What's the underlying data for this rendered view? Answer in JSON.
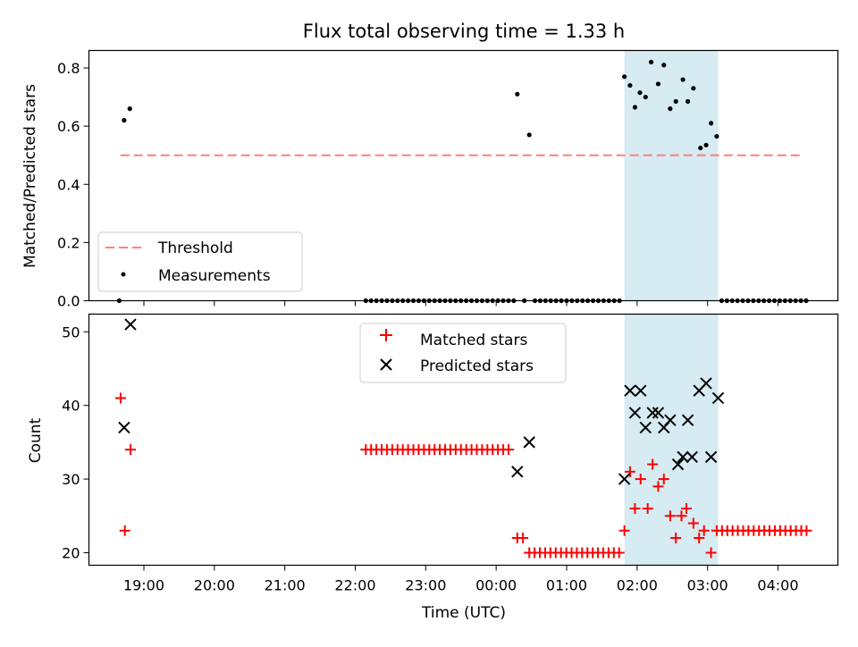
{
  "chart_data": [
    {
      "type": "scatter",
      "title": "Flux total observing time = 1.33 h",
      "ylabel": "Matched/Predicted stars",
      "xlabel": "",
      "ylim": [
        0.0,
        0.86
      ],
      "yticks": [
        "0.0",
        "0.2",
        "0.4",
        "0.6",
        "0.8"
      ],
      "xticks": [
        "19:00",
        "20:00",
        "21:00",
        "22:00",
        "23:00",
        "00:00",
        "01:00",
        "02:00",
        "03:00",
        "04:00"
      ],
      "highlight": {
        "start": 1.82,
        "end": 3.15,
        "color": "#add8e6"
      },
      "threshold": {
        "name": "Threshold",
        "value": 0.5,
        "color": "#ff7f7f",
        "x_start": "18:40",
        "x_end": "04:20"
      },
      "legend": {
        "placement": "lower left",
        "entries": [
          "Threshold",
          "Measurements"
        ]
      },
      "series": [
        {
          "name": "Measurements",
          "marker": "dot",
          "color": "#000000",
          "points": [
            [
              -5.35,
              0.0
            ],
            [
              -5.28,
              0.62
            ],
            [
              -5.2,
              0.66
            ],
            [
              -1.85,
              0.0
            ],
            [
              -1.775,
              0.0
            ],
            [
              -1.7,
              0.0
            ],
            [
              -1.625,
              0.0
            ],
            [
              -1.55,
              0.0
            ],
            [
              -1.475,
              0.0
            ],
            [
              -1.4,
              0.0
            ],
            [
              -1.325,
              0.0
            ],
            [
              -1.25,
              0.0
            ],
            [
              -1.175,
              0.0
            ],
            [
              -1.1,
              0.0
            ],
            [
              -1.025,
              0.0
            ],
            [
              -0.95,
              0.0
            ],
            [
              -0.875,
              0.0
            ],
            [
              -0.8,
              0.0
            ],
            [
              -0.725,
              0.0
            ],
            [
              -0.65,
              0.0
            ],
            [
              -0.575,
              0.0
            ],
            [
              -0.5,
              0.0
            ],
            [
              -0.425,
              0.0
            ],
            [
              -0.35,
              0.0
            ],
            [
              -0.275,
              0.0
            ],
            [
              -0.2,
              0.0
            ],
            [
              -0.125,
              0.0
            ],
            [
              -0.05,
              0.0
            ],
            [
              0.025,
              0.0
            ],
            [
              0.1,
              0.0
            ],
            [
              0.175,
              0.0
            ],
            [
              0.25,
              0.0
            ],
            [
              0.3,
              0.71
            ],
            [
              0.4,
              0.0
            ],
            [
              0.47,
              0.57
            ],
            [
              0.55,
              0.0
            ],
            [
              0.625,
              0.0
            ],
            [
              0.7,
              0.0
            ],
            [
              0.775,
              0.0
            ],
            [
              0.85,
              0.0
            ],
            [
              0.925,
              0.0
            ],
            [
              1.0,
              0.0
            ],
            [
              1.075,
              0.0
            ],
            [
              1.15,
              0.0
            ],
            [
              1.225,
              0.0
            ],
            [
              1.3,
              0.0
            ],
            [
              1.375,
              0.0
            ],
            [
              1.45,
              0.0
            ],
            [
              1.525,
              0.0
            ],
            [
              1.6,
              0.0
            ],
            [
              1.675,
              0.0
            ],
            [
              1.75,
              0.0
            ],
            [
              1.82,
              0.77
            ],
            [
              1.9,
              0.74
            ],
            [
              1.97,
              0.665
            ],
            [
              2.04,
              0.715
            ],
            [
              2.12,
              0.7
            ],
            [
              2.2,
              0.82
            ],
            [
              2.3,
              0.745
            ],
            [
              2.38,
              0.81
            ],
            [
              2.47,
              0.66
            ],
            [
              2.55,
              0.685
            ],
            [
              2.65,
              0.76
            ],
            [
              2.72,
              0.685
            ],
            [
              2.8,
              0.73
            ],
            [
              2.9,
              0.525
            ],
            [
              2.98,
              0.535
            ],
            [
              3.05,
              0.61
            ],
            [
              3.13,
              0.565
            ],
            [
              3.2,
              0.0
            ],
            [
              3.275,
              0.0
            ],
            [
              3.35,
              0.0
            ],
            [
              3.425,
              0.0
            ],
            [
              3.5,
              0.0
            ],
            [
              3.575,
              0.0
            ],
            [
              3.65,
              0.0
            ],
            [
              3.725,
              0.0
            ],
            [
              3.8,
              0.0
            ],
            [
              3.875,
              0.0
            ],
            [
              3.95,
              0.0
            ],
            [
              4.025,
              0.0
            ],
            [
              4.1,
              0.0
            ],
            [
              4.175,
              0.0
            ],
            [
              4.25,
              0.0
            ],
            [
              4.325,
              0.0
            ],
            [
              4.4,
              0.0
            ]
          ]
        }
      ]
    },
    {
      "type": "scatter",
      "title": "",
      "ylabel": "Count",
      "xlabel": "Time (UTC)",
      "ylim": [
        18.3,
        52.4
      ],
      "yticks": [
        "20",
        "30",
        "40",
        "50"
      ],
      "xticks": [
        "19:00",
        "20:00",
        "21:00",
        "22:00",
        "23:00",
        "00:00",
        "01:00",
        "02:00",
        "03:00",
        "04:00"
      ],
      "highlight": {
        "start": 1.82,
        "end": 3.15,
        "color": "#add8e6"
      },
      "legend": {
        "placement": "upper center",
        "entries": [
          "Matched stars",
          "Predicted stars"
        ]
      },
      "series": [
        {
          "name": "Matched stars",
          "marker": "plus",
          "color": "#ff0000",
          "points": [
            [
              -5.33,
              41
            ],
            [
              -5.27,
              23
            ],
            [
              -5.19,
              34
            ],
            [
              -1.85,
              34
            ],
            [
              -1.775,
              34
            ],
            [
              -1.7,
              34
            ],
            [
              -1.625,
              34
            ],
            [
              -1.55,
              34
            ],
            [
              -1.475,
              34
            ],
            [
              -1.4,
              34
            ],
            [
              -1.325,
              34
            ],
            [
              -1.25,
              34
            ],
            [
              -1.175,
              34
            ],
            [
              -1.1,
              34
            ],
            [
              -1.025,
              34
            ],
            [
              -0.95,
              34
            ],
            [
              -0.875,
              34
            ],
            [
              -0.8,
              34
            ],
            [
              -0.725,
              34
            ],
            [
              -0.65,
              34
            ],
            [
              -0.575,
              34
            ],
            [
              -0.5,
              34
            ],
            [
              -0.425,
              34
            ],
            [
              -0.35,
              34
            ],
            [
              -0.275,
              34
            ],
            [
              -0.2,
              34
            ],
            [
              -0.125,
              34
            ],
            [
              -0.05,
              34
            ],
            [
              0.025,
              34
            ],
            [
              0.1,
              34
            ],
            [
              0.175,
              34
            ],
            [
              0.3,
              22
            ],
            [
              0.38,
              22
            ],
            [
              0.47,
              20
            ],
            [
              0.545,
              20
            ],
            [
              0.62,
              20
            ],
            [
              0.695,
              20
            ],
            [
              0.77,
              20
            ],
            [
              0.845,
              20
            ],
            [
              0.92,
              20
            ],
            [
              0.995,
              20
            ],
            [
              1.07,
              20
            ],
            [
              1.145,
              20
            ],
            [
              1.22,
              20
            ],
            [
              1.295,
              20
            ],
            [
              1.37,
              20
            ],
            [
              1.445,
              20
            ],
            [
              1.52,
              20
            ],
            [
              1.595,
              20
            ],
            [
              1.67,
              20
            ],
            [
              1.745,
              20
            ],
            [
              1.82,
              23
            ],
            [
              1.9,
              31
            ],
            [
              1.97,
              26
            ],
            [
              2.05,
              30
            ],
            [
              2.15,
              26
            ],
            [
              2.22,
              32
            ],
            [
              2.3,
              29
            ],
            [
              2.38,
              30
            ],
            [
              2.47,
              25
            ],
            [
              2.55,
              22
            ],
            [
              2.63,
              25
            ],
            [
              2.7,
              26
            ],
            [
              2.8,
              24
            ],
            [
              2.88,
              22
            ],
            [
              2.95,
              23
            ],
            [
              3.05,
              20
            ],
            [
              3.13,
              23
            ],
            [
              3.205,
              23
            ],
            [
              3.28,
              23
            ],
            [
              3.355,
              23
            ],
            [
              3.43,
              23
            ],
            [
              3.505,
              23
            ],
            [
              3.58,
              23
            ],
            [
              3.655,
              23
            ],
            [
              3.73,
              23
            ],
            [
              3.805,
              23
            ],
            [
              3.88,
              23
            ],
            [
              3.955,
              23
            ],
            [
              4.03,
              23
            ],
            [
              4.105,
              23
            ],
            [
              4.18,
              23
            ],
            [
              4.255,
              23
            ],
            [
              4.33,
              23
            ],
            [
              4.405,
              23
            ]
          ]
        },
        {
          "name": "Predicted stars",
          "marker": "x",
          "color": "#000000",
          "points": [
            [
              -5.28,
              37
            ],
            [
              -5.19,
              51
            ],
            [
              0.3,
              31
            ],
            [
              0.47,
              35
            ],
            [
              1.82,
              30
            ],
            [
              1.9,
              42
            ],
            [
              1.97,
              39
            ],
            [
              2.05,
              42
            ],
            [
              2.12,
              37
            ],
            [
              2.22,
              39
            ],
            [
              2.3,
              39
            ],
            [
              2.38,
              37
            ],
            [
              2.47,
              38
            ],
            [
              2.58,
              32
            ],
            [
              2.65,
              33
            ],
            [
              2.72,
              38
            ],
            [
              2.78,
              33
            ],
            [
              2.88,
              42
            ],
            [
              2.98,
              43
            ],
            [
              3.05,
              33
            ],
            [
              3.15,
              41
            ]
          ]
        }
      ]
    }
  ]
}
